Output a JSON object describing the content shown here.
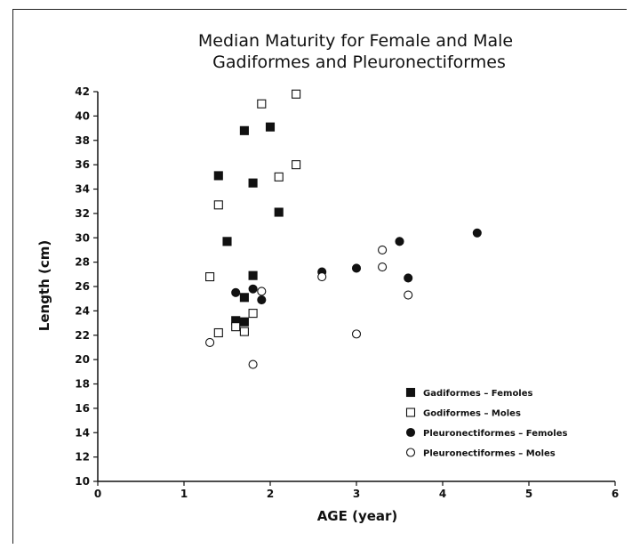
{
  "chart_data": {
    "type": "scatter",
    "title": "Median Maturity for Female and Male",
    "subtitle": "Gadiformes and Pleuronectiformes",
    "xlabel": "AGE (year)",
    "ylabel": "Length (cm)",
    "xlim": [
      0,
      6
    ],
    "ylim": [
      10,
      42
    ],
    "x_ticks": [
      0,
      1,
      2,
      3,
      4,
      5,
      6
    ],
    "y_ticks": [
      10,
      12,
      14,
      16,
      18,
      20,
      22,
      24,
      26,
      28,
      30,
      32,
      34,
      36,
      38,
      40,
      42
    ],
    "grid": false,
    "legend_position": "lower-right",
    "series": [
      {
        "name": "Gadiformes - Females",
        "marker": "filled-square",
        "points": [
          [
            1.4,
            35.1
          ],
          [
            1.5,
            29.7
          ],
          [
            1.6,
            23.2
          ],
          [
            1.7,
            38.8
          ],
          [
            1.7,
            25.1
          ],
          [
            1.7,
            23.1
          ],
          [
            1.8,
            34.5
          ],
          [
            1.8,
            26.9
          ],
          [
            2.0,
            39.1
          ],
          [
            2.1,
            32.1
          ]
        ]
      },
      {
        "name": "Gadiformes - Males",
        "marker": "open-square",
        "points": [
          [
            1.3,
            26.8
          ],
          [
            1.4,
            32.7
          ],
          [
            1.4,
            22.2
          ],
          [
            1.6,
            22.7
          ],
          [
            1.7,
            22.3
          ],
          [
            1.8,
            23.8
          ],
          [
            1.9,
            41.0
          ],
          [
            2.1,
            35.0
          ],
          [
            2.3,
            41.8
          ],
          [
            2.3,
            36.0
          ]
        ]
      },
      {
        "name": "Pleuronectiformes - Females",
        "marker": "filled-circle",
        "points": [
          [
            1.6,
            25.5
          ],
          [
            1.8,
            25.8
          ],
          [
            1.9,
            24.9
          ],
          [
            2.6,
            27.2
          ],
          [
            3.0,
            27.5
          ],
          [
            3.5,
            29.7
          ],
          [
            3.6,
            26.7
          ],
          [
            4.4,
            30.4
          ]
        ]
      },
      {
        "name": "Pleuronectiformes - Males",
        "marker": "open-circle",
        "points": [
          [
            1.3,
            21.4
          ],
          [
            1.8,
            19.6
          ],
          [
            1.9,
            25.6
          ],
          [
            2.6,
            26.8
          ],
          [
            3.0,
            22.1
          ],
          [
            3.3,
            29.0
          ],
          [
            3.3,
            27.6
          ],
          [
            3.6,
            25.3
          ]
        ]
      }
    ],
    "legend": [
      "Gadiformes – Femoles",
      "Godiformes – Moles",
      "Pleuronectiformes – Femoles",
      "Pleuronectiformes – Moles"
    ]
  }
}
